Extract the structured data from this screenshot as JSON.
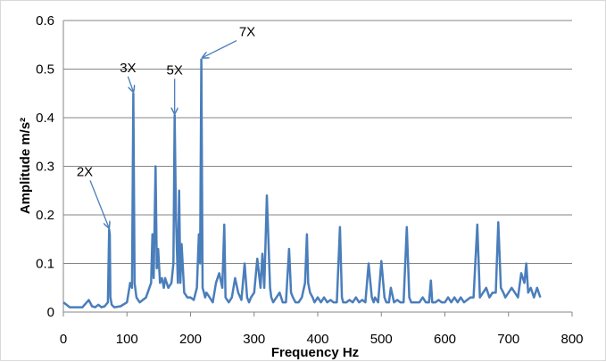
{
  "chart_data": {
    "type": "line",
    "title": "",
    "xlabel": "Frequency Hz",
    "ylabel": "Amplitude m/s²",
    "xlim": [
      0,
      800
    ],
    "ylim": [
      0,
      0.6
    ],
    "x_ticks": [
      "0",
      "100",
      "200",
      "300",
      "400",
      "500",
      "600",
      "700",
      "800"
    ],
    "y_ticks": [
      "0",
      "0.1",
      "0.2",
      "0.3",
      "0.4",
      "0.5",
      "0.6"
    ],
    "grid": "horizontal",
    "legend": "none",
    "color": "#4a7ebb",
    "annotations": [
      {
        "text": "2X",
        "x": 73,
        "y": 0.17
      },
      {
        "text": "3X",
        "x": 110,
        "y": 0.45
      },
      {
        "text": "5X",
        "x": 175,
        "y": 0.405
      },
      {
        "text": "7X",
        "x": 219,
        "y": 0.52
      }
    ],
    "series": [
      {
        "x": [
          0,
          5,
          10,
          20,
          30,
          40,
          45,
          50,
          55,
          60,
          65,
          70,
          72,
          73,
          74,
          76,
          80,
          90,
          100,
          105,
          108,
          110,
          112,
          115,
          120,
          130,
          138,
          140,
          142,
          145,
          147,
          149,
          152,
          155,
          158,
          160,
          165,
          170,
          173,
          175,
          177,
          180,
          182,
          184,
          186,
          190,
          195,
          200,
          205,
          210,
          213,
          215,
          217,
          219,
          221,
          223,
          225,
          230,
          235,
          240,
          245,
          250,
          253,
          255,
          260,
          265,
          270,
          275,
          280,
          285,
          289,
          292,
          295,
          300,
          305,
          310,
          313,
          316,
          320,
          325,
          327,
          330,
          335,
          340,
          345,
          350,
          355,
          358,
          361,
          365,
          370,
          375,
          380,
          383,
          385,
          388,
          392,
          395,
          400,
          405,
          410,
          415,
          420,
          425,
          430,
          435,
          438,
          440,
          445,
          450,
          455,
          460,
          465,
          470,
          475,
          480,
          485,
          488,
          490,
          495,
          500,
          505,
          508,
          512,
          515,
          520,
          525,
          530,
          535,
          540,
          544,
          547,
          550,
          555,
          560,
          565,
          570,
          575,
          578,
          580,
          585,
          590,
          595,
          600,
          605,
          610,
          615,
          620,
          625,
          630,
          635,
          640,
          645,
          651,
          655,
          660,
          665,
          670,
          675,
          680,
          684,
          688,
          692,
          695,
          700,
          705,
          710,
          715,
          720,
          725,
          728,
          731,
          735,
          740,
          745,
          750
        ],
        "y": [
          0.02,
          0.015,
          0.01,
          0.01,
          0.01,
          0.025,
          0.012,
          0.01,
          0.015,
          0.01,
          0.012,
          0.02,
          0.17,
          0.16,
          0.03,
          0.015,
          0.01,
          0.012,
          0.02,
          0.06,
          0.05,
          0.45,
          0.06,
          0.03,
          0.02,
          0.03,
          0.06,
          0.16,
          0.07,
          0.3,
          0.09,
          0.13,
          0.06,
          0.07,
          0.05,
          0.07,
          0.05,
          0.06,
          0.1,
          0.405,
          0.2,
          0.06,
          0.25,
          0.06,
          0.14,
          0.04,
          0.03,
          0.03,
          0.025,
          0.05,
          0.16,
          0.1,
          0.52,
          0.05,
          0.04,
          0.03,
          0.04,
          0.03,
          0.02,
          0.06,
          0.08,
          0.05,
          0.18,
          0.03,
          0.02,
          0.03,
          0.07,
          0.04,
          0.025,
          0.1,
          0.03,
          0.02,
          0.03,
          0.04,
          0.11,
          0.05,
          0.12,
          0.05,
          0.24,
          0.05,
          0.03,
          0.02,
          0.03,
          0.04,
          0.02,
          0.02,
          0.13,
          0.04,
          0.03,
          0.02,
          0.02,
          0.03,
          0.06,
          0.16,
          0.06,
          0.04,
          0.03,
          0.02,
          0.03,
          0.02,
          0.03,
          0.02,
          0.025,
          0.02,
          0.02,
          0.175,
          0.03,
          0.02,
          0.02,
          0.025,
          0.02,
          0.03,
          0.02,
          0.025,
          0.02,
          0.1,
          0.03,
          0.02,
          0.03,
          0.02,
          0.105,
          0.03,
          0.02,
          0.02,
          0.05,
          0.02,
          0.025,
          0.02,
          0.02,
          0.175,
          0.03,
          0.02,
          0.02,
          0.02,
          0.02,
          0.03,
          0.02,
          0.02,
          0.065,
          0.02,
          0.02,
          0.025,
          0.02,
          0.02,
          0.03,
          0.02,
          0.03,
          0.02,
          0.03,
          0.02,
          0.025,
          0.03,
          0.03,
          0.18,
          0.03,
          0.04,
          0.05,
          0.03,
          0.04,
          0.04,
          0.185,
          0.05,
          0.04,
          0.03,
          0.04,
          0.05,
          0.04,
          0.03,
          0.08,
          0.06,
          0.1,
          0.04,
          0.05,
          0.03,
          0.05,
          0.03
        ]
      }
    ]
  }
}
